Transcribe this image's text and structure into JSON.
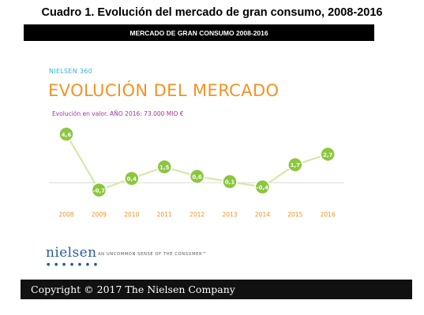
{
  "caption": "Cuadro 1. Evolución del mercado de gran consumo, 2008-2016",
  "header_bar": "MERCADO DE GRAN CONSUMO 2008-2016",
  "brand_line": "NIELSEN 360",
  "footer": {
    "logo": "nielsen",
    "tagline": "AN UNCOMMON SENSE OF THE CONSUMER™",
    "copyright": "Copyright © 2017 The Nielsen Company"
  },
  "colors": {
    "line": "#d4e8a8",
    "marker": "#8cc63f",
    "year_label": "#f39323",
    "title": "#f39323",
    "subtitle": "#a0349a"
  },
  "chart_data": {
    "type": "line",
    "title": "EVOLUCIÓN DEL MERCADO",
    "subtitle": "Evolución en valor. AÑO 2016: 73.000 MIO €",
    "x": [
      "2008",
      "2009",
      "2010",
      "2011",
      "2012",
      "2013",
      "2014",
      "2015",
      "2016"
    ],
    "values": [
      4.6,
      -0.7,
      0.4,
      1.5,
      0.6,
      0.1,
      -0.4,
      1.7,
      2.7
    ],
    "data_labels": [
      "4,6",
      "-0,7",
      "0,4",
      "1,5",
      "0,6",
      "0,1",
      "-0,4",
      "1,7",
      "2,7"
    ],
    "baseline": 0,
    "grid": false,
    "legend": "none"
  }
}
